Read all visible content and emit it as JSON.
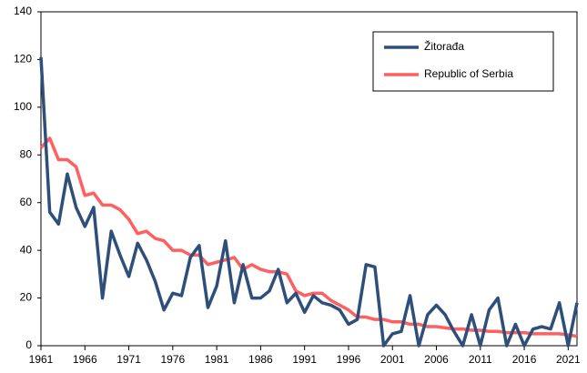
{
  "chart_data": {
    "type": "line",
    "x": [
      1961,
      1962,
      1963,
      1964,
      1965,
      1966,
      1967,
      1968,
      1969,
      1970,
      1971,
      1972,
      1973,
      1974,
      1975,
      1976,
      1977,
      1978,
      1979,
      1980,
      1981,
      1982,
      1983,
      1984,
      1985,
      1986,
      1987,
      1988,
      1989,
      1990,
      1991,
      1992,
      1993,
      1994,
      1995,
      1996,
      1997,
      1998,
      1999,
      2000,
      2001,
      2002,
      2003,
      2004,
      2005,
      2006,
      2007,
      2008,
      2009,
      2010,
      2011,
      2012,
      2013,
      2014,
      2015,
      2016,
      2017,
      2018,
      2019,
      2020,
      2021,
      2022
    ],
    "series": [
      {
        "name": "Žitorađa",
        "color": "#2e4f7a",
        "values": [
          121,
          56,
          51,
          72,
          58,
          50,
          58,
          20,
          48,
          38,
          29,
          43,
          36,
          27,
          15,
          22,
          21,
          37,
          42,
          16,
          25,
          44,
          18,
          34,
          20,
          20,
          23,
          32,
          18,
          22,
          14,
          21,
          18,
          17,
          15,
          9,
          11,
          34,
          33,
          0,
          5,
          6,
          21,
          0,
          13,
          17,
          13,
          6,
          0,
          13,
          0,
          15,
          20,
          0,
          9,
          0,
          7,
          8,
          7,
          18,
          0,
          18
        ]
      },
      {
        "name": "Republic of Serbia",
        "color": "#ff5f5f",
        "values": [
          83,
          87,
          78,
          78,
          75,
          63,
          64,
          59,
          59,
          57,
          53,
          47,
          48,
          45,
          44,
          40,
          40,
          38,
          38,
          34,
          35,
          36,
          37,
          32,
          34,
          32,
          31,
          31,
          30,
          23,
          21,
          22,
          22,
          19,
          17,
          15,
          12,
          12,
          11,
          11,
          10,
          10,
          9,
          9,
          8,
          8,
          7.5,
          7,
          7,
          6.5,
          6.5,
          6,
          6,
          5.5,
          5.5,
          5.5,
          5,
          5,
          5,
          5,
          4.5,
          4
        ]
      }
    ],
    "xlim": [
      1961,
      2022
    ],
    "xticks": [
      1961,
      1966,
      1971,
      1976,
      1981,
      1986,
      1991,
      1996,
      2001,
      2006,
      2011,
      2016,
      2021
    ],
    "ylim": [
      0,
      140
    ],
    "yticks": [
      0,
      20,
      40,
      60,
      80,
      100,
      120,
      140
    ],
    "legend": "upper right"
  }
}
